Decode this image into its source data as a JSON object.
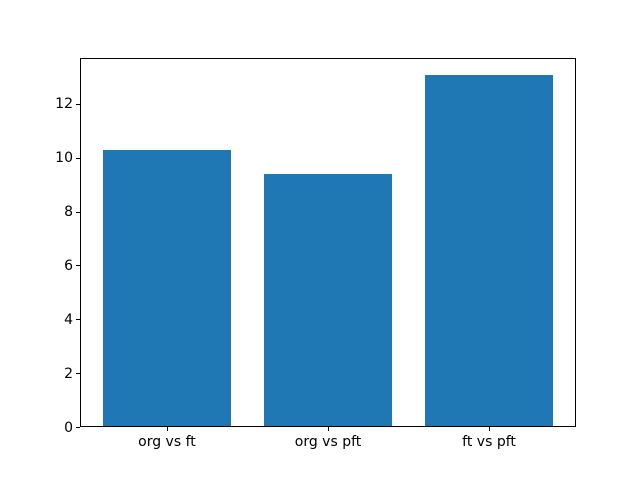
{
  "chart_data": {
    "type": "bar",
    "categories": [
      "org vs ft",
      "org vs pft",
      "ft vs pft"
    ],
    "values": [
      10.25,
      9.35,
      13.05
    ],
    "title": "",
    "xlabel": "",
    "ylabel": "",
    "ylim": [
      0,
      13.7
    ],
    "yticks": [
      0,
      2,
      4,
      6,
      8,
      10,
      12
    ],
    "bar_color": "#1f77b4",
    "background_color": "#ffffff",
    "axis_color": "#000000",
    "text_color": "#000000",
    "grid": false,
    "legend": null,
    "bar_width_fraction": 0.8
  }
}
